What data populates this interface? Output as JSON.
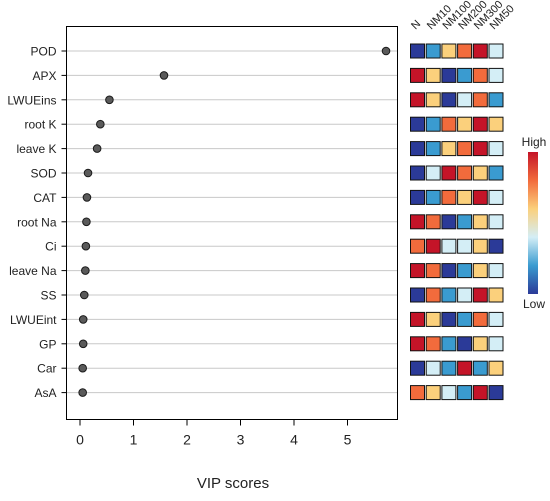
{
  "chart_data": {
    "type": "dot",
    "title": "",
    "xlabel": "VIP scores",
    "ylabel": "",
    "xlim": [
      -0.22,
      5.9
    ],
    "xticks": [
      0,
      1,
      2,
      3,
      4,
      5
    ],
    "categories": [
      "POD",
      "APX",
      "LWUEins",
      "root K",
      "leave K",
      "SOD",
      "CAT",
      "root Na",
      "Ci",
      "leave Na",
      "SS",
      "LWUEint",
      "GP",
      "Car",
      "AsA"
    ],
    "values": [
      5.72,
      1.57,
      0.55,
      0.38,
      0.32,
      0.15,
      0.13,
      0.12,
      0.11,
      0.1,
      0.08,
      0.06,
      0.06,
      0.05,
      0.05
    ],
    "grid": "horizontal",
    "heatmap": {
      "columns": [
        "N",
        "NM10",
        "NM100",
        "NM200",
        "NM300",
        "NM50"
      ],
      "colorbar": {
        "high_label": "High",
        "low_label": "Low",
        "colors": [
          "#2b3a98",
          "#3a9bd0",
          "#d4eef6",
          "#fbd07c",
          "#f26b3c",
          "#c41428"
        ]
      },
      "levels": [
        [
          0,
          1,
          3,
          4,
          5,
          2
        ],
        [
          5,
          3,
          0,
          1,
          4,
          2
        ],
        [
          5,
          3,
          0,
          2,
          4,
          1
        ],
        [
          0,
          1,
          4,
          3,
          5,
          3
        ],
        [
          0,
          1,
          3,
          4,
          5,
          2
        ],
        [
          0,
          2,
          5,
          4,
          3,
          1
        ],
        [
          0,
          1,
          4,
          3,
          5,
          2
        ],
        [
          5,
          4,
          0,
          1,
          3,
          2
        ],
        [
          4,
          5,
          2,
          2,
          3,
          0
        ],
        [
          5,
          4,
          0,
          1,
          3,
          2
        ],
        [
          0,
          4,
          1,
          2,
          5,
          3
        ],
        [
          5,
          3,
          0,
          1,
          4,
          2
        ],
        [
          5,
          4,
          1,
          0,
          3,
          2
        ],
        [
          0,
          2,
          1,
          5,
          1,
          3
        ],
        [
          4,
          3,
          2,
          1,
          5,
          0
        ]
      ]
    }
  }
}
